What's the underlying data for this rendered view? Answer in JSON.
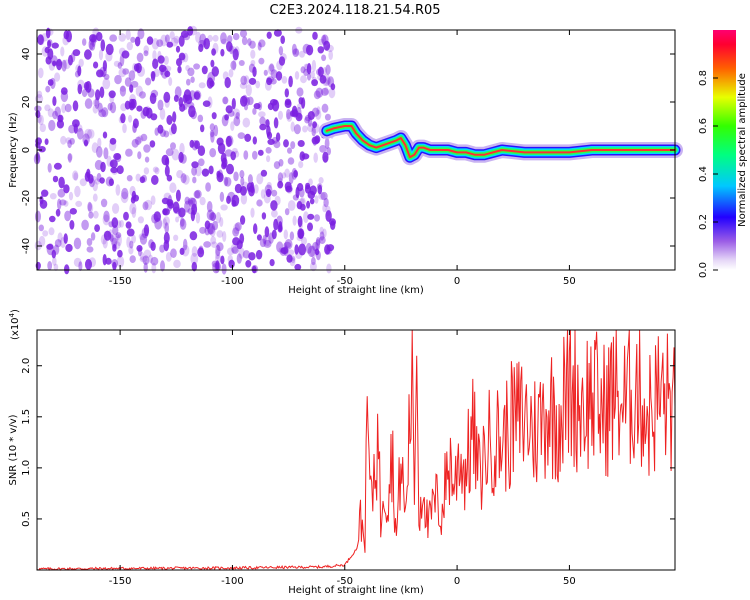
{
  "title": "C2E3.2024.118.21.54.R05",
  "colors": {
    "scatter": "#7a1fe0",
    "snr_line": "#ee2222",
    "axis": "#000000"
  },
  "chart_data": [
    {
      "type": "heatmap",
      "xlabel": "Height of straight line (km)",
      "ylabel": "Frequency (Hz)",
      "xlim": [
        -187,
        97
      ],
      "ylim": [
        -50,
        50
      ],
      "x_ticks": [
        -150,
        -100,
        -50,
        0,
        50
      ],
      "y_ticks": [
        -40,
        -20,
        0,
        20,
        40
      ],
      "noise_region_x": [
        -187,
        -55
      ],
      "signal_trace": {
        "x": [
          -58,
          -55,
          -50,
          -47,
          -45,
          -42,
          -39,
          -36,
          -33,
          -30,
          -27,
          -25,
          -23,
          -21,
          -19,
          -17,
          -15,
          -12,
          -8,
          -4,
          0,
          4,
          8,
          12,
          16,
          20,
          30,
          40,
          50,
          60,
          70,
          80,
          90,
          97
        ],
        "y": [
          8,
          9,
          10,
          10,
          7,
          4,
          2,
          1,
          2,
          3,
          4,
          5,
          2,
          -3,
          -2,
          1,
          1,
          0,
          0,
          0,
          -1,
          -1,
          -2,
          -2,
          -1,
          0,
          -1,
          -1,
          -1,
          0,
          0,
          0,
          0,
          0
        ]
      },
      "colorbar": {
        "label": "Normalized spectral amplitude",
        "range": [
          0,
          1
        ],
        "ticks": [
          "0.0",
          "0.2",
          "0.4",
          "0.6",
          "0.8"
        ]
      }
    },
    {
      "type": "line",
      "xlabel": "Height of straight line (km)",
      "ylabel": "SNR (10 * v/v)",
      "y_multiplier": "(x10",
      "y_multiplier_exp": "4",
      "y_multiplier_close": ")",
      "xlim": [
        -187,
        97
      ],
      "ylim": [
        0,
        23500
      ],
      "x_ticks": [
        -150,
        -100,
        -50,
        0,
        50
      ],
      "y_ticks": [
        "0.5",
        "1.0",
        "1.5",
        "2.0"
      ],
      "series": [
        {
          "x": [
            -187,
            -150,
            -100,
            -60,
            -50,
            -45,
            -43,
            -41,
            -40,
            -38,
            -37,
            -35,
            -34,
            -33,
            -31,
            -29,
            -27,
            -25,
            -23,
            -21,
            -20,
            -19,
            -18,
            -17,
            -15,
            -13,
            -11,
            -9,
            -7,
            -5,
            -3,
            -1,
            1,
            3,
            5,
            7,
            10,
            13,
            16,
            20,
            25,
            30,
            35,
            40,
            45,
            50,
            55,
            60,
            65,
            70,
            75,
            80,
            85,
            90,
            94,
            97
          ],
          "y": [
            100,
            150,
            200,
            300,
            500,
            2000,
            5000,
            3000,
            14500,
            6000,
            10000,
            13000,
            4000,
            9000,
            7000,
            12000,
            3000,
            11000,
            5000,
            15000,
            20500,
            8000,
            23200,
            5000,
            9000,
            4000,
            6000,
            7000,
            5000,
            9000,
            10500,
            8000,
            12000,
            9500,
            11000,
            13500,
            9000,
            12000,
            13000,
            12500,
            14500,
            15000,
            13500,
            16000,
            15000,
            18000,
            16500,
            17000,
            15500,
            17500,
            16000,
            18500,
            15000,
            17000,
            16500,
            16000
          ]
        }
      ]
    }
  ]
}
